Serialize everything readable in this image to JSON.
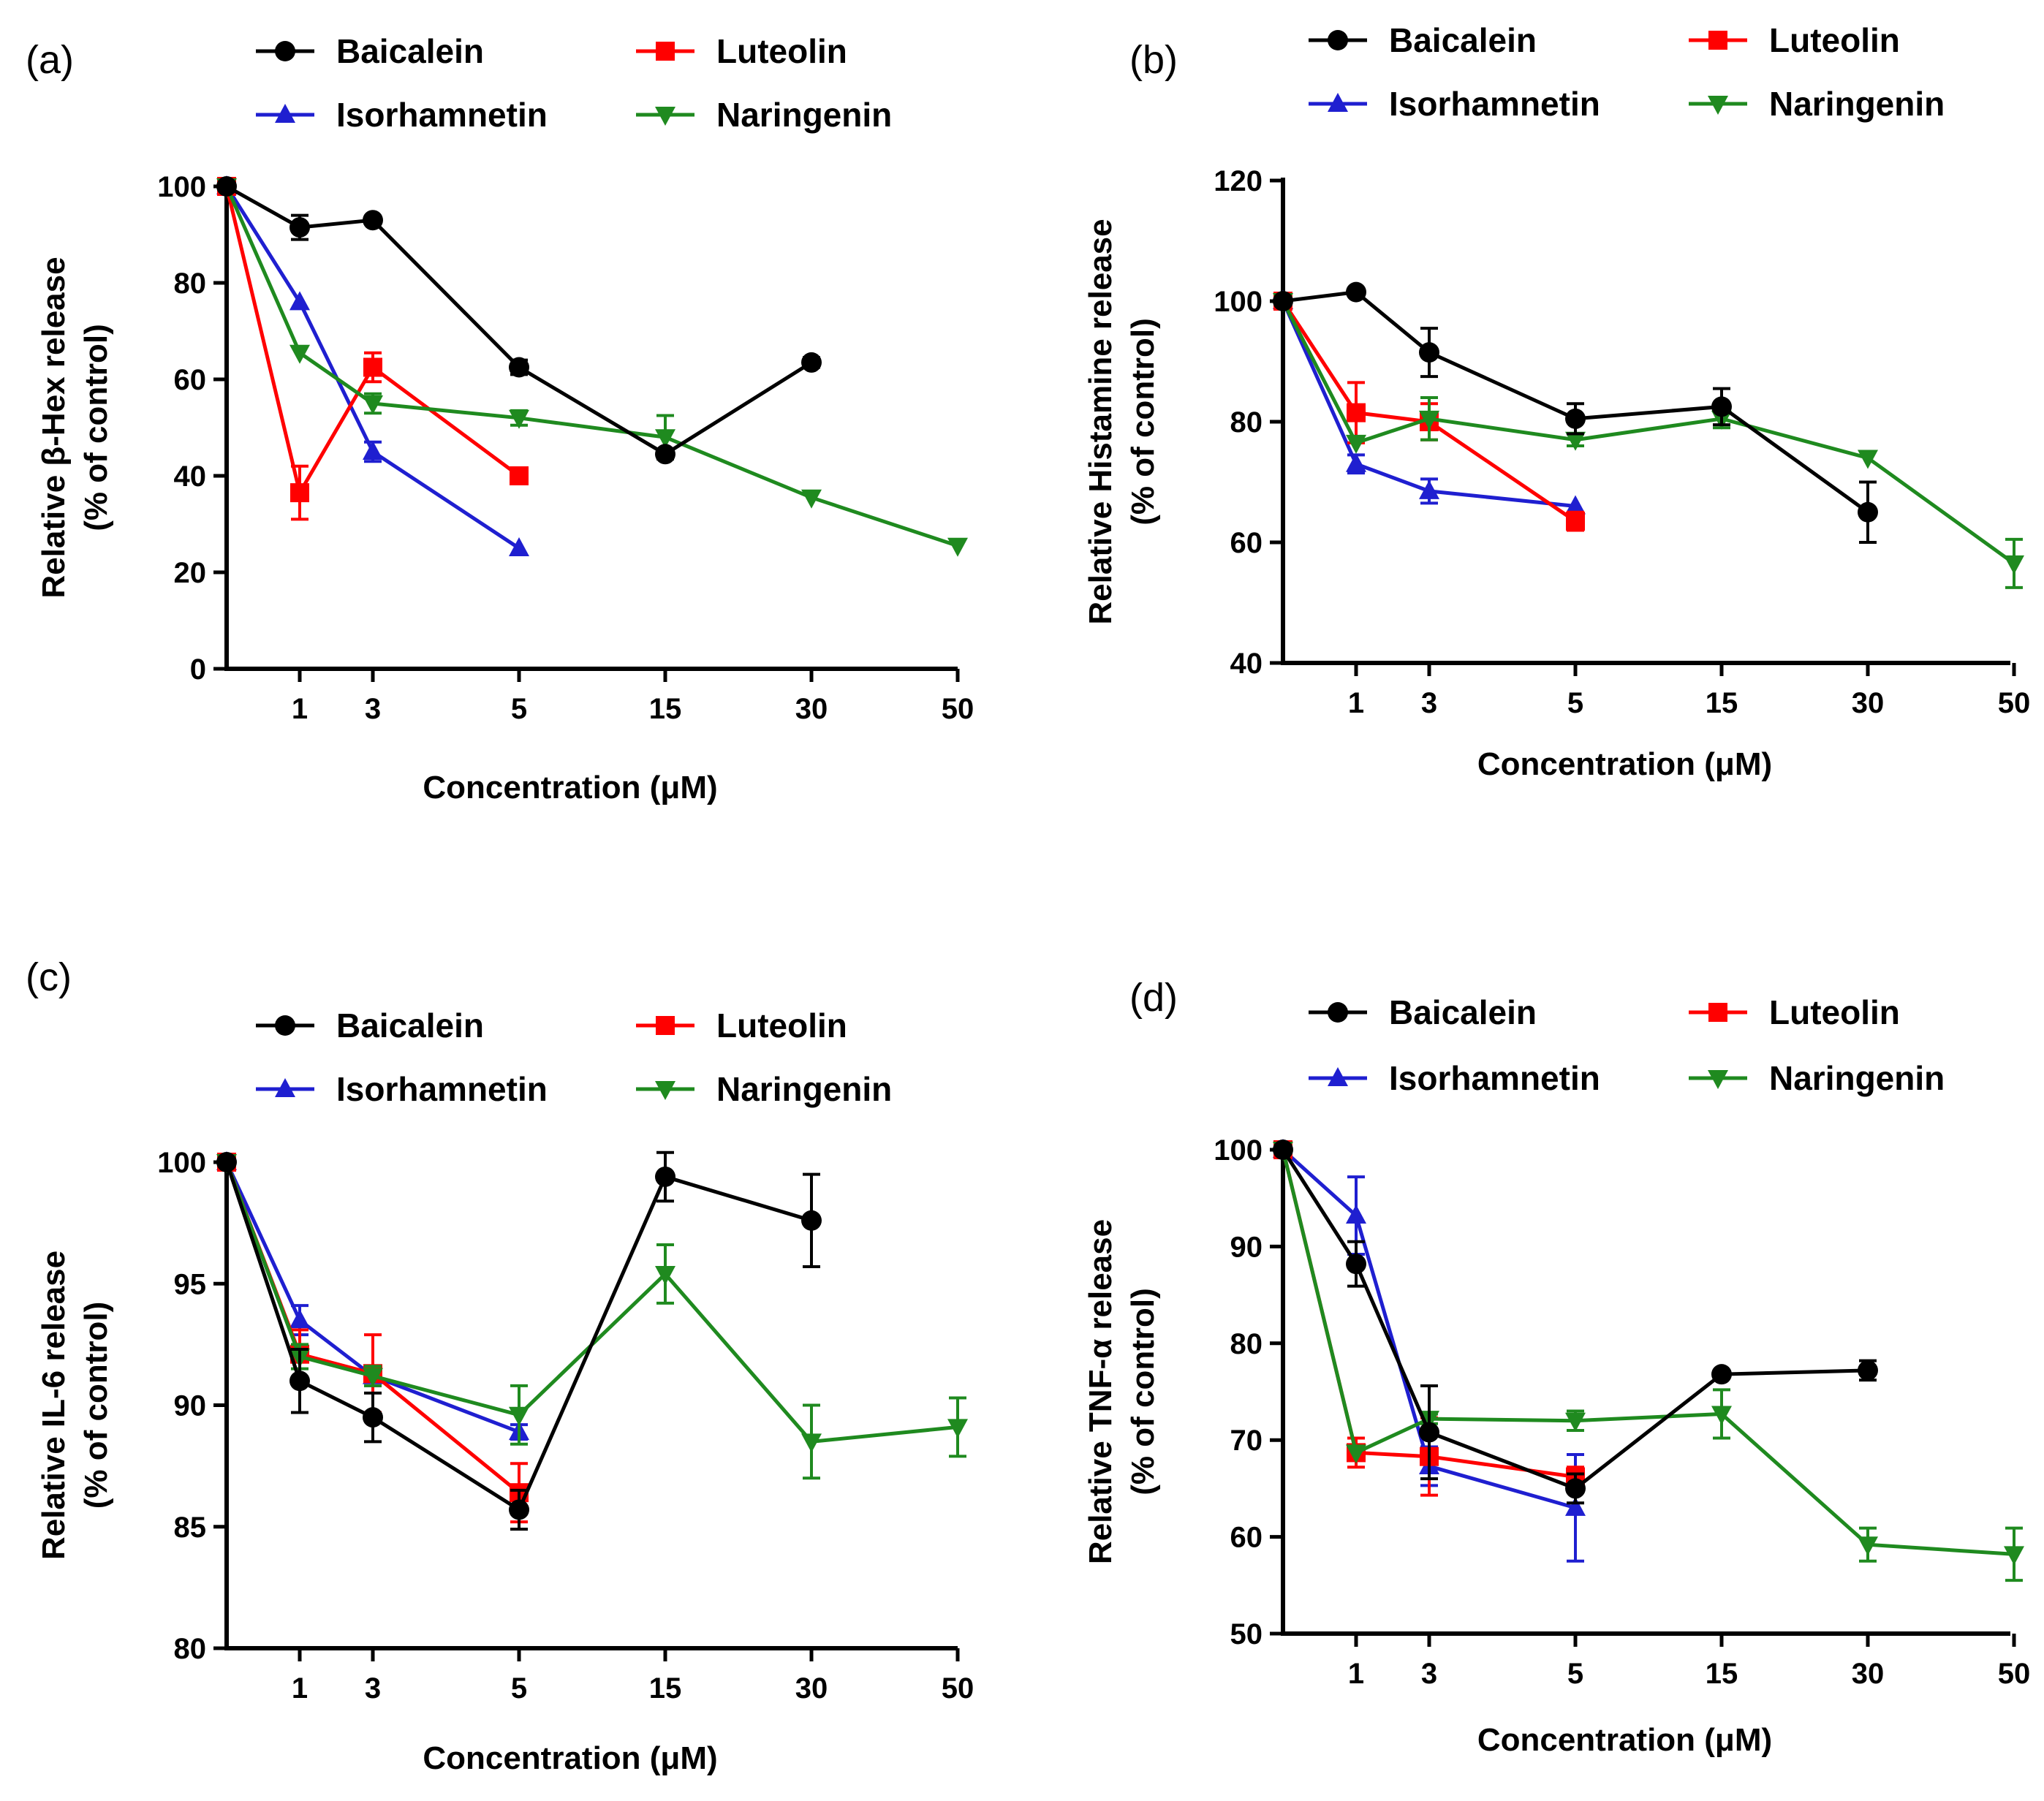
{
  "figure": {
    "x_values": [
      "0",
      "1",
      "3",
      "5",
      "15",
      "30",
      "50"
    ],
    "x_tick_labels": [
      "1",
      "3",
      "5",
      "15",
      "30",
      "50"
    ],
    "series_styles": [
      {
        "name": "Baicalein",
        "color": "#000000",
        "marker": "circle"
      },
      {
        "name": "Isorhamnetin",
        "color": "#1f1fd0",
        "marker": "triangle-up"
      },
      {
        "name": "Luteolin",
        "color": "#ff0000",
        "marker": "square"
      },
      {
        "name": "Naringenin",
        "color": "#1f8a1f",
        "marker": "triangle-down"
      }
    ]
  },
  "chart_data": [
    {
      "type": "line",
      "panel": "(a)",
      "xlabel": "Concentration (μM)",
      "ylabel": [
        "Relative β-Hex release",
        "(% of control)"
      ],
      "x": [
        "0",
        "1",
        "3",
        "5",
        "15",
        "30",
        "50"
      ],
      "ylim": [
        0,
        100
      ],
      "yticks": [
        0,
        20,
        40,
        60,
        80,
        100
      ],
      "series": [
        {
          "name": "Baicalein",
          "values": [
            100,
            91.5,
            93,
            62.5,
            44.5,
            63.5,
            null
          ],
          "errors": [
            0,
            2.5,
            0,
            1.5,
            1,
            1,
            0
          ]
        },
        {
          "name": "Isorhamnetin",
          "values": [
            100,
            76,
            45,
            25,
            null,
            null,
            null
          ],
          "errors": [
            0,
            0,
            2,
            0,
            0,
            0,
            0
          ]
        },
        {
          "name": "Luteolin",
          "values": [
            100,
            36.5,
            62.5,
            40,
            null,
            null,
            null
          ],
          "errors": [
            0,
            5.5,
            3,
            0,
            0,
            0,
            0
          ]
        },
        {
          "name": "Naringenin",
          "values": [
            100,
            65.5,
            55,
            52,
            48,
            35.5,
            25.5
          ],
          "errors": [
            0,
            0,
            2,
            1.5,
            4.5,
            0,
            0
          ]
        }
      ]
    },
    {
      "type": "line",
      "panel": "(b)",
      "xlabel": "Concentration (μM)",
      "ylabel": [
        "Relative Histamine release",
        "(% of control)"
      ],
      "x": [
        "0",
        "1",
        "3",
        "5",
        "15",
        "30",
        "50"
      ],
      "ylim": [
        40,
        120
      ],
      "yticks": [
        40,
        60,
        80,
        100,
        120
      ],
      "series": [
        {
          "name": "Baicalein",
          "values": [
            100,
            101.5,
            91.5,
            80.5,
            82.5,
            65,
            null
          ],
          "errors": [
            0,
            0,
            4,
            2.5,
            3,
            5,
            0
          ]
        },
        {
          "name": "Isorhamnetin",
          "values": [
            100,
            73,
            68.5,
            66,
            null,
            null,
            null
          ],
          "errors": [
            0,
            1.5,
            2,
            0,
            0,
            0,
            0
          ]
        },
        {
          "name": "Luteolin",
          "values": [
            100,
            81.5,
            80,
            63.5,
            null,
            null,
            null
          ],
          "errors": [
            0,
            5,
            3,
            1.5,
            0,
            0,
            0
          ]
        },
        {
          "name": "Naringenin",
          "values": [
            100,
            76.5,
            80.5,
            77,
            80.5,
            74,
            56.5
          ],
          "errors": [
            0,
            0,
            3.5,
            1,
            1.5,
            0,
            4
          ]
        }
      ]
    },
    {
      "type": "line",
      "panel": "(c)",
      "xlabel": "Concentration (μM)",
      "ylabel": [
        "Relative IL-6 release",
        "(% of control)"
      ],
      "x": [
        "0",
        "1",
        "3",
        "5",
        "15",
        "30",
        "50"
      ],
      "ylim": [
        80,
        100
      ],
      "yticks": [
        80,
        85,
        90,
        95,
        100
      ],
      "series": [
        {
          "name": "Baicalein",
          "values": [
            100,
            91,
            89.5,
            85.7,
            99.4,
            97.6,
            null
          ],
          "errors": [
            0,
            1.3,
            1,
            0.8,
            1,
            1.9,
            0
          ]
        },
        {
          "name": "Isorhamnetin",
          "values": [
            100,
            93.5,
            91.2,
            88.9,
            null,
            null,
            null
          ],
          "errors": [
            0,
            0.6,
            0.4,
            0.3,
            0,
            0,
            0
          ]
        },
        {
          "name": "Luteolin",
          "values": [
            100,
            92.1,
            91.3,
            86.4,
            null,
            null,
            null
          ],
          "errors": [
            0,
            1,
            1.6,
            1.2,
            0,
            0,
            0
          ]
        },
        {
          "name": "Naringenin",
          "values": [
            100,
            92,
            91.2,
            89.6,
            95.4,
            88.5,
            89.1
          ],
          "errors": [
            0,
            0.5,
            0.4,
            1.2,
            1.2,
            1.5,
            1.2
          ]
        }
      ]
    },
    {
      "type": "line",
      "panel": "(d)",
      "xlabel": "Concentration (μM)",
      "ylabel": [
        "Relative TNF-α release",
        "(% of control)"
      ],
      "x": [
        "0",
        "1",
        "3",
        "5",
        "15",
        "30",
        "50"
      ],
      "ylim": [
        50,
        100
      ],
      "yticks": [
        50,
        60,
        70,
        80,
        90,
        100
      ],
      "series": [
        {
          "name": "Baicalein",
          "values": [
            100,
            88.2,
            70.8,
            65,
            76.8,
            77.2,
            null
          ],
          "errors": [
            0,
            2.3,
            4.8,
            1.5,
            0,
            1,
            0
          ]
        },
        {
          "name": "Isorhamnetin",
          "values": [
            100,
            93.2,
            67.3,
            63,
            null,
            null,
            null
          ],
          "errors": [
            0,
            4,
            2,
            5.5,
            0,
            0,
            0
          ]
        },
        {
          "name": "Luteolin",
          "values": [
            100,
            68.7,
            68.3,
            66.2,
            null,
            null,
            null
          ],
          "errors": [
            0,
            1.5,
            4,
            1,
            0,
            0,
            0
          ]
        },
        {
          "name": "Naringenin",
          "values": [
            100,
            68.7,
            72.2,
            72,
            72.7,
            59.2,
            58.2
          ],
          "errors": [
            0,
            0,
            0.5,
            1,
            2.5,
            1.7,
            2.7
          ]
        }
      ]
    }
  ]
}
